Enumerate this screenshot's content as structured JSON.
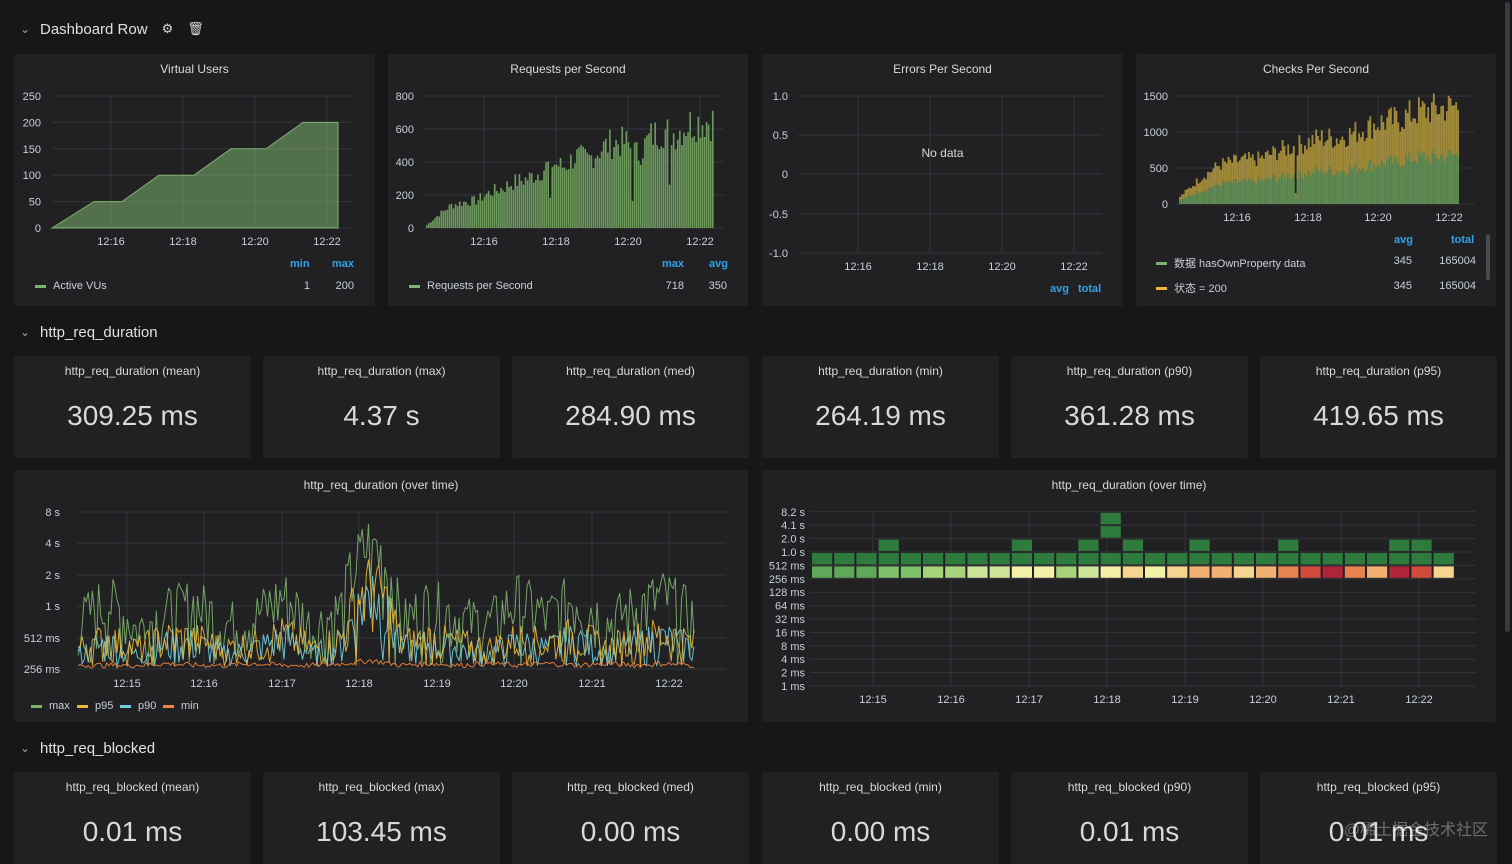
{
  "rows": {
    "dashboard": {
      "title": "Dashboard Row"
    },
    "duration": {
      "title": "http_req_duration"
    },
    "blocked": {
      "title": "http_req_blocked"
    }
  },
  "panels": {
    "vus": {
      "title": "Virtual Users",
      "legend_headers": [
        "min",
        "max"
      ],
      "legend": [
        {
          "name": "Active VUs",
          "color": "#7eb26d",
          "values": [
            "1",
            "200"
          ]
        }
      ]
    },
    "rps": {
      "title": "Requests per Second",
      "legend_headers": [
        "max",
        "avg"
      ],
      "legend": [
        {
          "name": "Requests per Second",
          "color": "#7eb26d",
          "values": [
            "718",
            "350"
          ]
        }
      ]
    },
    "eps": {
      "title": "Errors Per Second",
      "no_data": "No data",
      "legend_headers": [
        "avg",
        "total"
      ]
    },
    "cps": {
      "title": "Checks Per Second",
      "legend_headers": [
        "avg",
        "total"
      ],
      "legend": [
        {
          "name": "数据 hasOwnProperty data",
          "color": "#7eb26d",
          "values": [
            "345",
            "165004"
          ]
        },
        {
          "name": "状态 = 200",
          "color": "#eab839",
          "values": [
            "345",
            "165004"
          ]
        }
      ]
    },
    "dur_chart": {
      "title": "http_req_duration (over time)",
      "legend": [
        {
          "name": "max",
          "color": "#7eb26d"
        },
        {
          "name": "p95",
          "color": "#eab839"
        },
        {
          "name": "p90",
          "color": "#6ed0e0"
        },
        {
          "name": "min",
          "color": "#ef843c"
        }
      ]
    },
    "heatmap": {
      "title": "http_req_duration (over time)"
    }
  },
  "duration_stats": [
    {
      "title": "http_req_duration (mean)",
      "value": "309.25 ms"
    },
    {
      "title": "http_req_duration (max)",
      "value": "4.37 s"
    },
    {
      "title": "http_req_duration (med)",
      "value": "284.90 ms"
    },
    {
      "title": "http_req_duration (min)",
      "value": "264.19 ms"
    },
    {
      "title": "http_req_duration (p90)",
      "value": "361.28 ms"
    },
    {
      "title": "http_req_duration (p95)",
      "value": "419.65 ms"
    }
  ],
  "blocked_stats": [
    {
      "title": "http_req_blocked (mean)",
      "value": "0.01 ms"
    },
    {
      "title": "http_req_blocked (max)",
      "value": "103.45 ms"
    },
    {
      "title": "http_req_blocked (med)",
      "value": "0.00 ms"
    },
    {
      "title": "http_req_blocked (min)",
      "value": "0.00 ms"
    },
    {
      "title": "http_req_blocked (p90)",
      "value": "0.01 ms"
    },
    {
      "title": "http_req_blocked (p95)",
      "value": "0.01 ms"
    }
  ],
  "watermark": "@稀土掘金技术社区",
  "chart_data": [
    {
      "type": "area",
      "title": "Virtual Users",
      "x": [
        "12:15",
        "12:16",
        "12:16:30",
        "12:17",
        "12:18",
        "12:18:30",
        "12:19",
        "12:20",
        "12:20:30",
        "12:21",
        "12:22",
        "12:22:30"
      ],
      "xticks": [
        "12:16",
        "12:18",
        "12:20",
        "12:22"
      ],
      "yticks": [
        "0",
        "50",
        "100",
        "150",
        "200",
        "250"
      ],
      "ylim": [
        0,
        250
      ],
      "series": [
        {
          "name": "Active VUs",
          "values": [
            0,
            50,
            50,
            100,
            100,
            100,
            150,
            150,
            150,
            200,
            200,
            200
          ]
        }
      ]
    },
    {
      "type": "area",
      "title": "Requests per Second",
      "xticks": [
        "12:16",
        "12:18",
        "12:20",
        "12:22"
      ],
      "yticks": [
        "0",
        "200",
        "400",
        "600",
        "800"
      ],
      "ylim": [
        0,
        800
      ],
      "series": [
        {
          "name": "Requests per Second",
          "values": [
            20,
            90,
            150,
            170,
            180,
            230,
            260,
            300,
            320,
            360,
            430,
            400,
            470,
            450,
            520,
            560,
            560,
            480,
            600,
            640,
            620,
            680,
            700,
            700
          ]
        }
      ]
    },
    {
      "type": "line",
      "title": "Errors Per Second",
      "xticks": [
        "12:16",
        "12:18",
        "12:20",
        "12:22"
      ],
      "yticks": [
        "1.0",
        "0.5",
        "0",
        "-0.5",
        "-1.0"
      ],
      "ylim": [
        -1,
        1
      ],
      "series": []
    },
    {
      "type": "area",
      "title": "Checks Per Second",
      "xticks": [
        "12:16",
        "12:18",
        "12:20",
        "12:22"
      ],
      "yticks": [
        "0",
        "500",
        "1000",
        "1500"
      ],
      "ylim": [
        0,
        1500
      ],
      "series": [
        {
          "name": "数据 hasOwnProperty data",
          "values": [
            50,
            180,
            280,
            310,
            320,
            380,
            420,
            470,
            470,
            520,
            580,
            600,
            660,
            680,
            700
          ]
        },
        {
          "name": "状态 = 200",
          "values": [
            50,
            180,
            280,
            310,
            320,
            380,
            420,
            470,
            470,
            520,
            580,
            600,
            660,
            680,
            700
          ]
        }
      ]
    },
    {
      "type": "line",
      "title": "http_req_duration (over time)",
      "xticks": [
        "12:15",
        "12:16",
        "12:17",
        "12:18",
        "12:19",
        "12:20",
        "12:21",
        "12:22"
      ],
      "yticks": [
        "256 ms",
        "512 ms",
        "1 s",
        "2 s",
        "4 s",
        "8 s"
      ],
      "series": [
        {
          "name": "max",
          "values": [
            0.7,
            1.2,
            0.6,
            0.9,
            1.1,
            0.7,
            0.8,
            1.3,
            0.6,
            1.0,
            4.4,
            0.7,
            1.1,
            0.8,
            0.7,
            1.2,
            0.8,
            1.3,
            0.7,
            1.0,
            1.3,
            0.8
          ]
        },
        {
          "name": "p95",
          "values": [
            0.4,
            0.5,
            0.4,
            0.5,
            0.5,
            0.4,
            0.45,
            0.55,
            0.4,
            0.5,
            1.8,
            0.45,
            0.5,
            0.45,
            0.4,
            0.5,
            0.45,
            0.55,
            0.4,
            0.5,
            0.55,
            0.45
          ]
        },
        {
          "name": "p90",
          "values": [
            0.35,
            0.45,
            0.35,
            0.45,
            0.45,
            0.35,
            0.4,
            0.5,
            0.35,
            0.45,
            1.4,
            0.4,
            0.45,
            0.4,
            0.35,
            0.45,
            0.4,
            0.5,
            0.35,
            0.45,
            0.5,
            0.4
          ]
        },
        {
          "name": "min",
          "values": [
            0.27,
            0.27,
            0.27,
            0.28,
            0.27,
            0.27,
            0.28,
            0.27,
            0.27,
            0.28,
            0.3,
            0.27,
            0.28,
            0.27,
            0.28,
            0.27,
            0.28,
            0.27,
            0.28,
            0.27,
            0.28,
            0.27
          ]
        }
      ]
    },
    {
      "type": "heatmap",
      "title": "http_req_duration (over time)",
      "xticks": [
        "12:15",
        "12:16",
        "12:17",
        "12:18",
        "12:19",
        "12:20",
        "12:21",
        "12:22"
      ],
      "yticks": [
        "1 ms",
        "2 ms",
        "4 ms",
        "8 ms",
        "16 ms",
        "32 ms",
        "64 ms",
        "128 ms",
        "256 ms",
        "512 ms",
        "1.0 s",
        "2.0 s",
        "4.1 s",
        "8.2 s"
      ]
    }
  ]
}
